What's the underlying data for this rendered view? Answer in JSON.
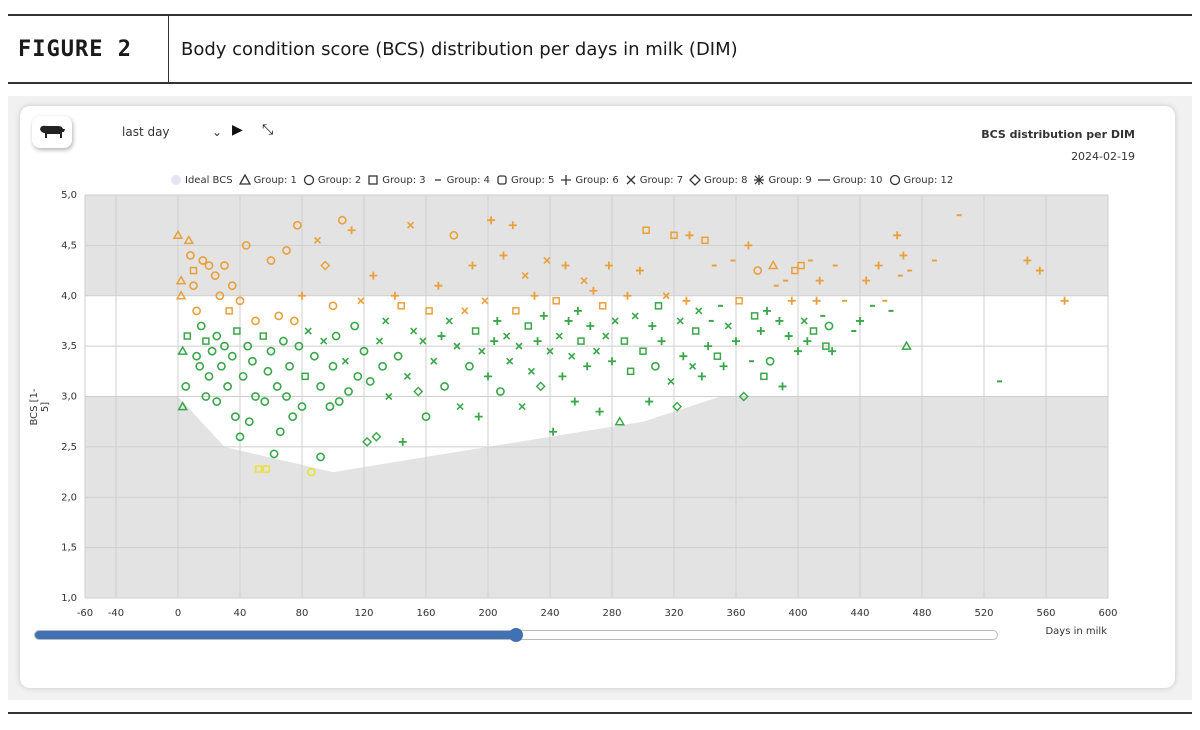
{
  "figure": {
    "label": "FIGURE 2",
    "caption": "Body condition score (BCS) distribution per days in milk (DIM)"
  },
  "toolbar": {
    "cow_icon": "cow-icon",
    "period_value": "last day",
    "play_icon": "play-icon",
    "collapse_icon": "collapse-icon"
  },
  "chart_data": {
    "type": "scatter",
    "title": "BCS distribution per DIM",
    "subtitle": "2024-02-19",
    "xlabel": "Days in milk",
    "ylabel": "BCS [1-5]",
    "xlim": [
      -60,
      600
    ],
    "ylim": [
      1.0,
      5.0
    ],
    "x_ticks": [
      -60,
      -40,
      0,
      40,
      80,
      120,
      160,
      200,
      240,
      280,
      320,
      360,
      400,
      440,
      480,
      520,
      560,
      600
    ],
    "y_ticks": [
      "1,0",
      "1,5",
      "2,0",
      "2,5",
      "3,0",
      "3,5",
      "4,0",
      "4,5",
      "5,0"
    ],
    "y_tick_values": [
      1.0,
      1.5,
      2.0,
      2.5,
      3.0,
      3.5,
      4.0,
      4.5,
      5.0
    ],
    "target_band": [
      3.0,
      4.0
    ],
    "ideal_bcs_lower": [
      [
        0,
        3.0
      ],
      [
        30,
        2.5
      ],
      [
        100,
        2.25
      ],
      [
        200,
        2.5
      ],
      [
        300,
        2.75
      ],
      [
        350,
        3.0
      ]
    ],
    "ideal_bcs_upper": [
      [
        0,
        4.0
      ],
      [
        350,
        4.0
      ]
    ],
    "colors": {
      "above": "#e9a03b",
      "in_range": "#3aa64a",
      "below": "#e8e23a",
      "ideal": "#e6e6f2",
      "band_out": "#e3e3e3"
    },
    "legend": [
      {
        "label": "Ideal BCS",
        "marker": "ideal"
      },
      {
        "label": "Group: 1",
        "marker": "triangle"
      },
      {
        "label": "Group: 2",
        "marker": "circle"
      },
      {
        "label": "Group: 3",
        "marker": "square"
      },
      {
        "label": "Group: 4",
        "marker": "dash"
      },
      {
        "label": "Group: 5",
        "marker": "rounded-square"
      },
      {
        "label": "Group: 6",
        "marker": "plus"
      },
      {
        "label": "Group: 7",
        "marker": "x"
      },
      {
        "label": "Group: 8",
        "marker": "diamond"
      },
      {
        "label": "Group: 9",
        "marker": "asterisk"
      },
      {
        "label": "Group: 10",
        "marker": "line"
      },
      {
        "label": "Group: 12",
        "marker": "circle-large"
      }
    ],
    "points": [
      [
        0,
        4.6,
        "triangle"
      ],
      [
        2,
        4.15,
        "triangle"
      ],
      [
        2,
        4.0,
        "triangle"
      ],
      [
        3,
        2.9,
        "triangle"
      ],
      [
        3,
        3.45,
        "triangle"
      ],
      [
        5,
        3.1,
        "circle"
      ],
      [
        6,
        3.6,
        "square"
      ],
      [
        7,
        4.55,
        "triangle"
      ],
      [
        8,
        4.4,
        "circle"
      ],
      [
        10,
        4.25,
        "square"
      ],
      [
        10,
        4.1,
        "circle"
      ],
      [
        12,
        3.85,
        "circle"
      ],
      [
        12,
        3.4,
        "circle"
      ],
      [
        14,
        3.3,
        "circle"
      ],
      [
        15,
        3.7,
        "circle"
      ],
      [
        16,
        4.35,
        "circle"
      ],
      [
        18,
        3.0,
        "circle"
      ],
      [
        18,
        3.55,
        "square"
      ],
      [
        20,
        4.3,
        "circle"
      ],
      [
        20,
        3.2,
        "circle"
      ],
      [
        22,
        3.45,
        "circle"
      ],
      [
        24,
        4.2,
        "circle"
      ],
      [
        25,
        3.6,
        "circle"
      ],
      [
        25,
        2.95,
        "circle"
      ],
      [
        27,
        4.0,
        "circle"
      ],
      [
        28,
        3.3,
        "circle"
      ],
      [
        30,
        4.3,
        "circle"
      ],
      [
        30,
        3.5,
        "circle"
      ],
      [
        32,
        3.1,
        "circle"
      ],
      [
        33,
        3.85,
        "square"
      ],
      [
        35,
        4.1,
        "circle"
      ],
      [
        35,
        3.4,
        "circle"
      ],
      [
        37,
        2.8,
        "circle"
      ],
      [
        38,
        3.65,
        "square"
      ],
      [
        40,
        2.6,
        "circle"
      ],
      [
        40,
        3.95,
        "circle"
      ],
      [
        42,
        3.2,
        "circle"
      ],
      [
        44,
        4.5,
        "circle"
      ],
      [
        45,
        3.5,
        "circle"
      ],
      [
        46,
        2.75,
        "circle"
      ],
      [
        48,
        3.35,
        "circle"
      ],
      [
        50,
        3.0,
        "circle"
      ],
      [
        50,
        3.75,
        "circle"
      ],
      [
        52,
        2.28,
        "square"
      ],
      [
        55,
        3.6,
        "square"
      ],
      [
        56,
        2.95,
        "circle"
      ],
      [
        57,
        2.28,
        "square"
      ],
      [
        58,
        3.25,
        "circle"
      ],
      [
        60,
        4.35,
        "circle"
      ],
      [
        60,
        3.45,
        "circle"
      ],
      [
        62,
        2.43,
        "circle"
      ],
      [
        64,
        3.1,
        "circle"
      ],
      [
        65,
        3.8,
        "circle"
      ],
      [
        66,
        2.65,
        "circle"
      ],
      [
        68,
        3.55,
        "circle"
      ],
      [
        70,
        4.45,
        "circle"
      ],
      [
        70,
        3.0,
        "circle"
      ],
      [
        72,
        3.3,
        "circle"
      ],
      [
        74,
        2.8,
        "circle"
      ],
      [
        75,
        3.75,
        "circle"
      ],
      [
        77,
        4.7,
        "circle"
      ],
      [
        78,
        3.5,
        "circle"
      ],
      [
        80,
        2.9,
        "circle"
      ],
      [
        80,
        4.0,
        "plus"
      ],
      [
        82,
        3.2,
        "square"
      ],
      [
        84,
        3.65,
        "x"
      ],
      [
        86,
        2.25,
        "circle"
      ],
      [
        88,
        3.4,
        "circle"
      ],
      [
        90,
        4.55,
        "x"
      ],
      [
        92,
        2.4,
        "circle"
      ],
      [
        92,
        3.1,
        "circle"
      ],
      [
        94,
        3.55,
        "x"
      ],
      [
        95,
        4.3,
        "diamond"
      ],
      [
        98,
        2.9,
        "circle"
      ],
      [
        100,
        3.3,
        "circle"
      ],
      [
        100,
        3.9,
        "circle"
      ],
      [
        102,
        3.6,
        "circle"
      ],
      [
        104,
        2.95,
        "circle"
      ],
      [
        106,
        4.75,
        "circle"
      ],
      [
        108,
        3.35,
        "x"
      ],
      [
        110,
        3.05,
        "circle"
      ],
      [
        112,
        4.65,
        "plus"
      ],
      [
        114,
        3.7,
        "circle"
      ],
      [
        116,
        3.2,
        "circle"
      ],
      [
        118,
        3.95,
        "x"
      ],
      [
        120,
        3.45,
        "circle"
      ],
      [
        122,
        2.55,
        "diamond"
      ],
      [
        124,
        3.15,
        "circle"
      ],
      [
        126,
        4.2,
        "plus"
      ],
      [
        128,
        2.6,
        "diamond"
      ],
      [
        130,
        3.55,
        "x"
      ],
      [
        132,
        3.3,
        "circle"
      ],
      [
        134,
        3.75,
        "x"
      ],
      [
        136,
        3.0,
        "x"
      ],
      [
        140,
        4.0,
        "plus"
      ],
      [
        142,
        3.4,
        "circle"
      ],
      [
        144,
        3.9,
        "square"
      ],
      [
        145,
        2.55,
        "plus"
      ],
      [
        148,
        3.2,
        "x"
      ],
      [
        150,
        4.7,
        "x"
      ],
      [
        152,
        3.65,
        "x"
      ],
      [
        155,
        3.05,
        "diamond"
      ],
      [
        158,
        3.55,
        "x"
      ],
      [
        160,
        2.8,
        "circle"
      ],
      [
        162,
        3.85,
        "square"
      ],
      [
        165,
        3.35,
        "x"
      ],
      [
        168,
        4.1,
        "plus"
      ],
      [
        170,
        3.6,
        "plus"
      ],
      [
        172,
        3.1,
        "circle"
      ],
      [
        175,
        3.75,
        "x"
      ],
      [
        178,
        4.6,
        "circle"
      ],
      [
        180,
        3.5,
        "x"
      ],
      [
        182,
        2.9,
        "x"
      ],
      [
        185,
        3.85,
        "x"
      ],
      [
        188,
        3.3,
        "circle"
      ],
      [
        190,
        4.3,
        "plus"
      ],
      [
        192,
        3.65,
        "square"
      ],
      [
        194,
        2.8,
        "plus"
      ],
      [
        196,
        3.45,
        "x"
      ],
      [
        198,
        3.95,
        "x"
      ],
      [
        200,
        3.2,
        "plus"
      ],
      [
        202,
        4.75,
        "plus"
      ],
      [
        204,
        3.55,
        "plus"
      ],
      [
        206,
        3.75,
        "plus"
      ],
      [
        208,
        3.05,
        "circle"
      ],
      [
        210,
        4.4,
        "plus"
      ],
      [
        212,
        3.6,
        "x"
      ],
      [
        214,
        3.35,
        "x"
      ],
      [
        216,
        4.7,
        "plus"
      ],
      [
        218,
        3.85,
        "square"
      ],
      [
        220,
        3.5,
        "x"
      ],
      [
        222,
        2.9,
        "x"
      ],
      [
        224,
        4.2,
        "x"
      ],
      [
        226,
        3.7,
        "square"
      ],
      [
        228,
        3.25,
        "x"
      ],
      [
        230,
        4.0,
        "plus"
      ],
      [
        232,
        3.55,
        "plus"
      ],
      [
        234,
        3.1,
        "diamond"
      ],
      [
        236,
        3.8,
        "plus"
      ],
      [
        238,
        4.35,
        "x"
      ],
      [
        240,
        3.45,
        "x"
      ],
      [
        242,
        2.65,
        "plus"
      ],
      [
        244,
        3.95,
        "square"
      ],
      [
        246,
        3.6,
        "x"
      ],
      [
        248,
        3.2,
        "plus"
      ],
      [
        250,
        4.3,
        "plus"
      ],
      [
        252,
        3.75,
        "plus"
      ],
      [
        254,
        3.4,
        "x"
      ],
      [
        256,
        2.95,
        "plus"
      ],
      [
        258,
        3.85,
        "plus"
      ],
      [
        260,
        3.55,
        "square"
      ],
      [
        262,
        4.15,
        "x"
      ],
      [
        264,
        3.3,
        "plus"
      ],
      [
        266,
        3.7,
        "plus"
      ],
      [
        268,
        4.05,
        "plus"
      ],
      [
        270,
        3.45,
        "x"
      ],
      [
        272,
        2.85,
        "plus"
      ],
      [
        274,
        3.9,
        "square"
      ],
      [
        276,
        3.6,
        "x"
      ],
      [
        278,
        4.3,
        "plus"
      ],
      [
        280,
        3.35,
        "plus"
      ],
      [
        282,
        3.75,
        "x"
      ],
      [
        285,
        2.75,
        "triangle"
      ],
      [
        288,
        3.55,
        "square"
      ],
      [
        290,
        4.0,
        "plus"
      ],
      [
        292,
        3.25,
        "square"
      ],
      [
        295,
        3.8,
        "x"
      ],
      [
        298,
        4.25,
        "plus"
      ],
      [
        300,
        3.45,
        "square"
      ],
      [
        302,
        4.65,
        "square"
      ],
      [
        304,
        2.95,
        "plus"
      ],
      [
        306,
        3.7,
        "plus"
      ],
      [
        308,
        3.3,
        "circle"
      ],
      [
        310,
        3.9,
        "square"
      ],
      [
        312,
        3.55,
        "plus"
      ],
      [
        315,
        4.0,
        "x"
      ],
      [
        318,
        3.15,
        "x"
      ],
      [
        320,
        4.6,
        "square"
      ],
      [
        322,
        2.9,
        "diamond"
      ],
      [
        324,
        3.75,
        "x"
      ],
      [
        326,
        3.4,
        "plus"
      ],
      [
        328,
        3.95,
        "plus"
      ],
      [
        330,
        4.6,
        "plus"
      ],
      [
        332,
        3.3,
        "x"
      ],
      [
        334,
        3.65,
        "square"
      ],
      [
        336,
        3.85,
        "x"
      ],
      [
        338,
        3.2,
        "plus"
      ],
      [
        340,
        4.55,
        "square"
      ],
      [
        342,
        3.5,
        "plus"
      ],
      [
        344,
        3.75,
        "dash"
      ],
      [
        346,
        4.3,
        "dash"
      ],
      [
        348,
        3.4,
        "square"
      ],
      [
        350,
        3.9,
        "dash"
      ],
      [
        352,
        3.3,
        "plus"
      ],
      [
        355,
        3.7,
        "x"
      ],
      [
        358,
        4.35,
        "dash"
      ],
      [
        360,
        3.55,
        "plus"
      ],
      [
        362,
        3.95,
        "square"
      ],
      [
        365,
        3.0,
        "diamond"
      ],
      [
        368,
        4.5,
        "plus"
      ],
      [
        370,
        3.35,
        "dash"
      ],
      [
        372,
        3.8,
        "square"
      ],
      [
        374,
        4.25,
        "circle"
      ],
      [
        376,
        3.65,
        "plus"
      ],
      [
        378,
        3.2,
        "square"
      ],
      [
        380,
        3.85,
        "plus"
      ],
      [
        382,
        3.35,
        "circle"
      ],
      [
        384,
        4.3,
        "triangle"
      ],
      [
        386,
        4.1,
        "dash"
      ],
      [
        388,
        3.75,
        "plus"
      ],
      [
        390,
        3.1,
        "plus"
      ],
      [
        392,
        4.15,
        "dash"
      ],
      [
        394,
        3.6,
        "plus"
      ],
      [
        396,
        3.95,
        "plus"
      ],
      [
        398,
        4.25,
        "square"
      ],
      [
        400,
        3.45,
        "plus"
      ],
      [
        402,
        4.3,
        "square"
      ],
      [
        404,
        3.75,
        "x"
      ],
      [
        406,
        3.55,
        "plus"
      ],
      [
        408,
        4.35,
        "dash"
      ],
      [
        410,
        3.65,
        "square"
      ],
      [
        412,
        3.95,
        "plus"
      ],
      [
        414,
        4.15,
        "plus"
      ],
      [
        416,
        3.8,
        "dash"
      ],
      [
        418,
        3.5,
        "square"
      ],
      [
        420,
        3.7,
        "circle"
      ],
      [
        422,
        3.45,
        "plus"
      ],
      [
        424,
        4.3,
        "dash"
      ],
      [
        430,
        3.95,
        "dash"
      ],
      [
        436,
        3.65,
        "dash"
      ],
      [
        440,
        3.75,
        "plus"
      ],
      [
        444,
        4.15,
        "plus"
      ],
      [
        448,
        3.9,
        "dash"
      ],
      [
        452,
        4.3,
        "plus"
      ],
      [
        456,
        3.95,
        "dash"
      ],
      [
        460,
        3.85,
        "dash"
      ],
      [
        464,
        4.6,
        "plus"
      ],
      [
        466,
        4.2,
        "dash"
      ],
      [
        468,
        4.4,
        "plus"
      ],
      [
        470,
        3.5,
        "triangle"
      ],
      [
        472,
        4.25,
        "dash"
      ],
      [
        488,
        4.35,
        "dash"
      ],
      [
        504,
        4.8,
        "dash"
      ],
      [
        530,
        3.15,
        "dash"
      ],
      [
        548,
        4.35,
        "plus"
      ],
      [
        556,
        4.25,
        "plus"
      ],
      [
        572,
        3.95,
        "plus"
      ]
    ]
  },
  "slider": {
    "fraction": 0.5
  }
}
